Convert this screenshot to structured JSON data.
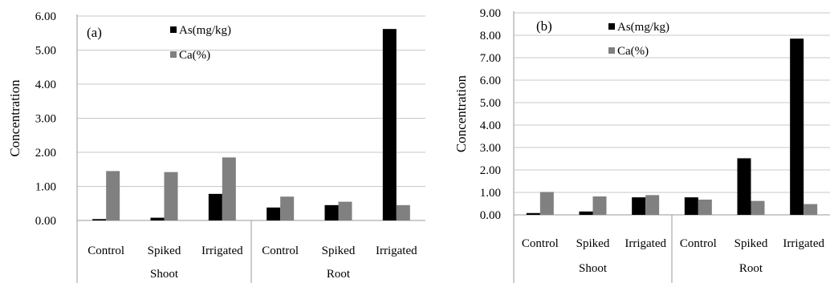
{
  "colors": {
    "as": "#000000",
    "ca": "#808080",
    "grid": "#c8c8c8",
    "axis": "#9a9a9a"
  },
  "chart_data": [
    {
      "type": "bar",
      "panel_label": "(a)",
      "ylabel": "Concentration",
      "ylim": [
        0,
        6
      ],
      "yticks": [
        "0.00",
        "1.00",
        "2.00",
        "3.00",
        "4.00",
        "5.00",
        "6.00"
      ],
      "grid": true,
      "legend_position": "top-left",
      "categories": [
        "Control",
        "Spiked",
        "Irrigated",
        "Control",
        "Spiked",
        "Irrigated"
      ],
      "groups": [
        "Shoot",
        "Root"
      ],
      "series": [
        {
          "name": "As(mg/kg)",
          "values": [
            0.04,
            0.08,
            0.78,
            0.38,
            0.45,
            5.62
          ]
        },
        {
          "name": "Ca(%)",
          "values": [
            1.45,
            1.42,
            1.85,
            0.7,
            0.55,
            0.45
          ]
        }
      ]
    },
    {
      "type": "bar",
      "panel_label": "(b)",
      "ylabel": "Concentration",
      "ylim": [
        0,
        9
      ],
      "yticks": [
        "0.00",
        "1.00",
        "2.00",
        "3.00",
        "4.00",
        "5.00",
        "6.00",
        "7.00",
        "8.00",
        "9.00"
      ],
      "grid": true,
      "legend_position": "top-left",
      "categories": [
        "Control",
        "Spiked",
        "Irrigated",
        "Control",
        "Spiked",
        "Irrigated"
      ],
      "groups": [
        "Shoot",
        "Root"
      ],
      "series": [
        {
          "name": "As(mg/kg)",
          "values": [
            0.08,
            0.15,
            0.78,
            0.78,
            2.52,
            7.85
          ]
        },
        {
          "name": "Ca(%)",
          "values": [
            1.02,
            0.82,
            0.88,
            0.68,
            0.62,
            0.48
          ]
        }
      ]
    }
  ]
}
